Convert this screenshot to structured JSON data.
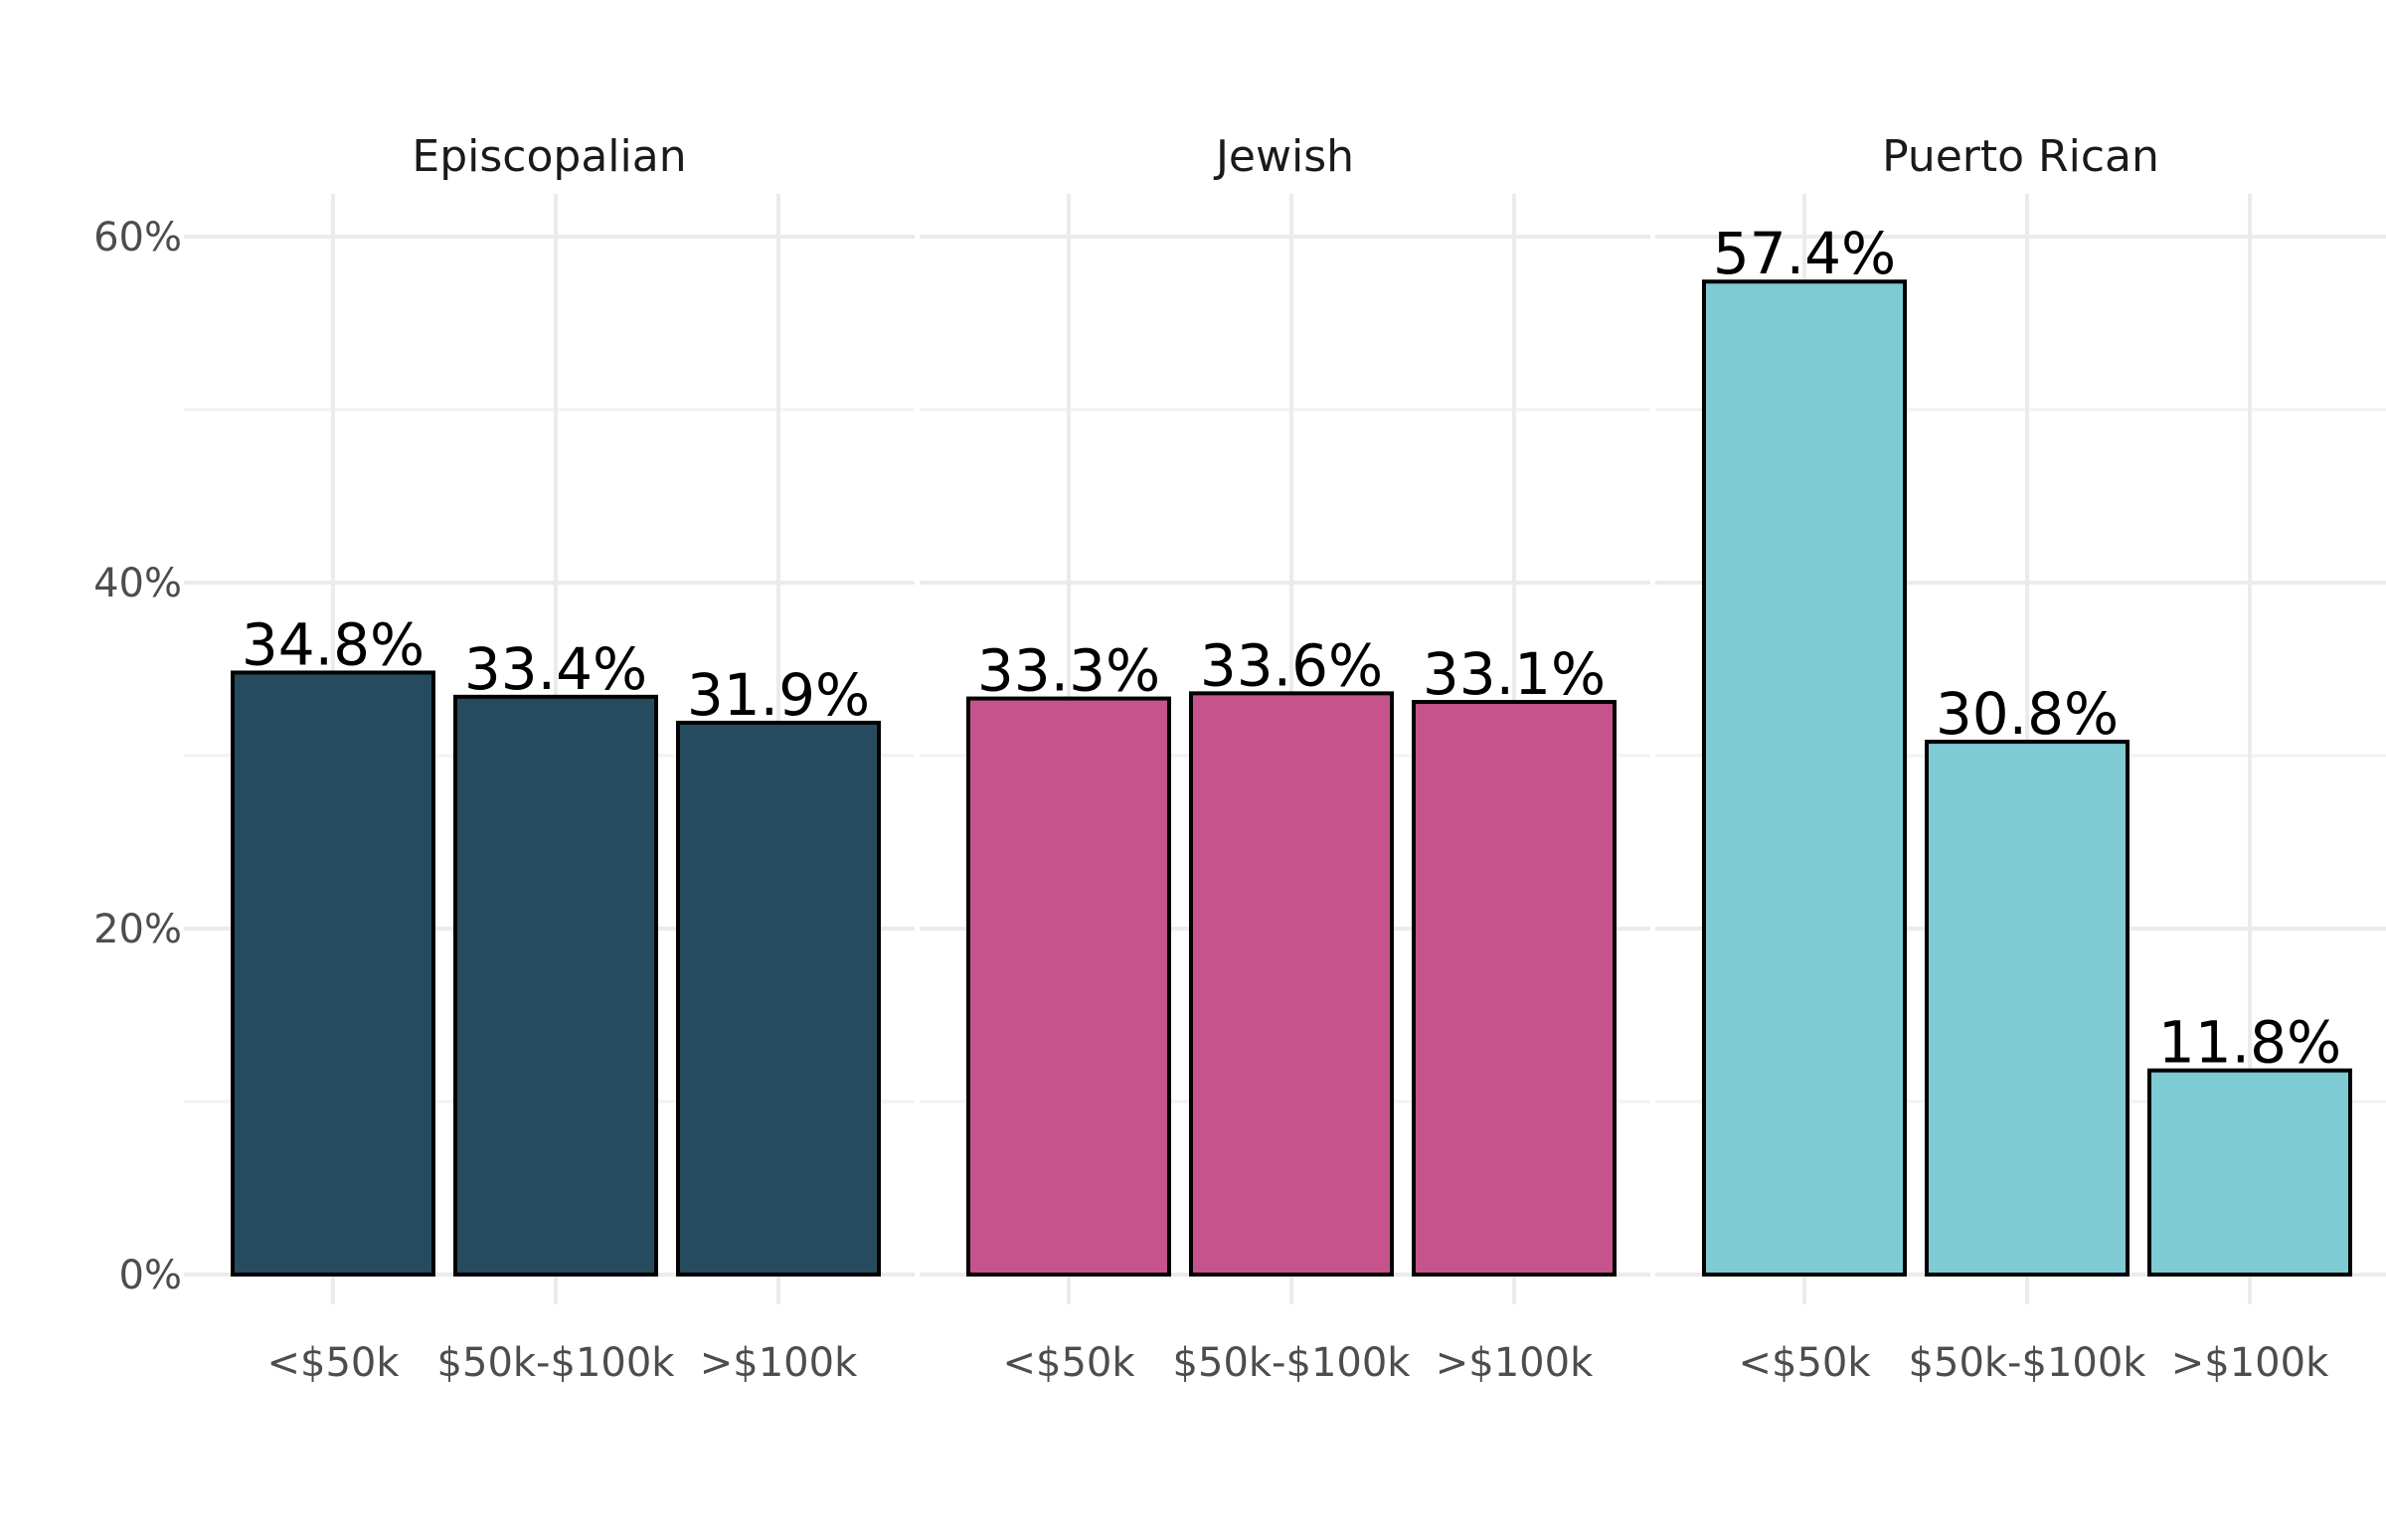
{
  "chart_data": {
    "type": "bar",
    "facets": [
      {
        "name": "Episcopalian",
        "color": "#264b5e",
        "categories": [
          "<$50k",
          "$50k-$100k",
          ">$100k"
        ],
        "values": [
          34.8,
          33.4,
          31.9
        ],
        "labels": [
          "34.8%",
          "33.4%",
          "31.9%"
        ]
      },
      {
        "name": "Jewish",
        "color": "#c6538c",
        "categories": [
          "<$50k",
          "$50k-$100k",
          ">$100k"
        ],
        "values": [
          33.3,
          33.6,
          33.1
        ],
        "labels": [
          "33.3%",
          "33.6%",
          "33.1%"
        ]
      },
      {
        "name": "Puerto Rican",
        "color": "#7ecbd4",
        "categories": [
          "<$50k",
          "$50k-$100k",
          ">$100k"
        ],
        "values": [
          57.4,
          30.8,
          11.8
        ],
        "labels": [
          "57.4%",
          "30.8%",
          "11.8%"
        ]
      }
    ],
    "y_ticks": [
      0,
      20,
      40,
      60
    ],
    "y_tick_labels": [
      "0%",
      "20%",
      "40%",
      "60%"
    ],
    "ylim": [
      0,
      62.5
    ],
    "grid": true,
    "legend": "none"
  }
}
